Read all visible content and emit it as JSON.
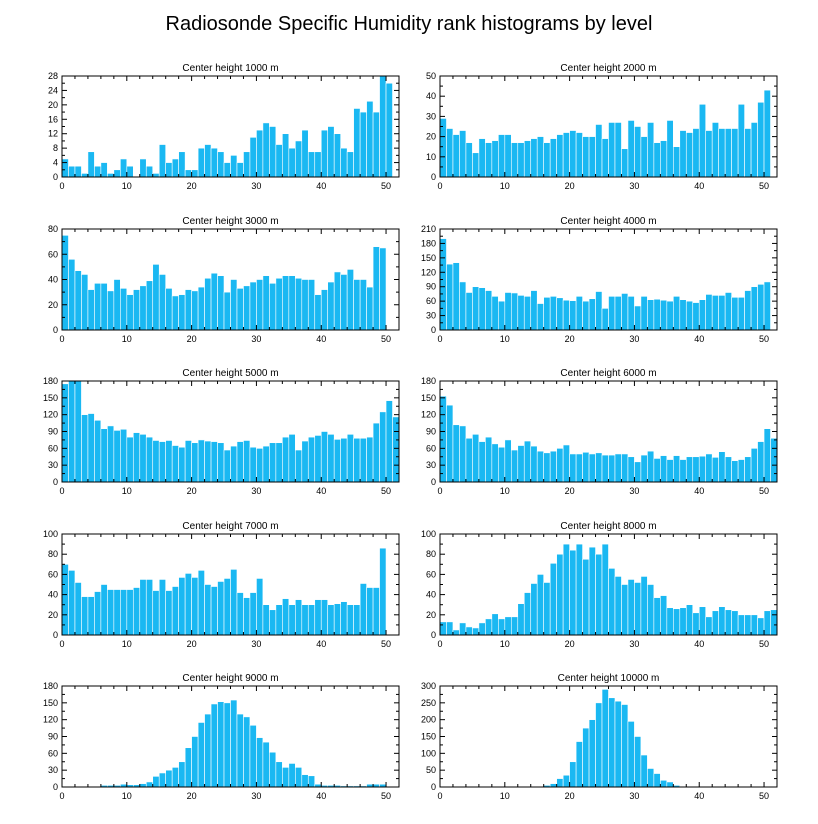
{
  "figure_title": "Radiosonde Specific Humidity rank histograms by level",
  "chart_data": [
    {
      "type": "bar",
      "title": "Center height 1000 m",
      "xlim": [
        0,
        52
      ],
      "ylim": [
        0,
        28
      ],
      "xticks": [
        0,
        10,
        20,
        30,
        40,
        50
      ],
      "yticks": [
        0,
        4,
        8,
        12,
        16,
        20,
        24,
        28
      ],
      "values": [
        5,
        3,
        3,
        1,
        7,
        3,
        4,
        1,
        2,
        5,
        3,
        0,
        5,
        3,
        1,
        9,
        4,
        5,
        7,
        2,
        2,
        8,
        9,
        8,
        7,
        4,
        6,
        4,
        7,
        11,
        13,
        15,
        14,
        9,
        12,
        8,
        10,
        13,
        7,
        7,
        13,
        14,
        12,
        8,
        7,
        19,
        18,
        21,
        18,
        28,
        26,
        0
      ]
    },
    {
      "type": "bar",
      "title": "Center height 2000 m",
      "xlim": [
        0,
        52
      ],
      "ylim": [
        0,
        50
      ],
      "xticks": [
        0,
        10,
        20,
        30,
        40,
        50
      ],
      "yticks": [
        0,
        10,
        20,
        30,
        40,
        50
      ],
      "values": [
        29,
        24,
        21,
        23,
        17,
        12,
        19,
        17,
        18,
        21,
        21,
        17,
        17,
        18,
        19,
        20,
        17,
        19,
        21,
        22,
        23,
        22,
        20,
        20,
        26,
        19,
        27,
        27,
        14,
        28,
        25,
        20,
        27,
        17,
        18,
        28,
        15,
        23,
        22,
        24,
        36,
        23,
        27,
        24,
        24,
        24,
        36,
        24,
        27,
        37,
        43,
        0
      ]
    },
    {
      "type": "bar",
      "title": "Center height 3000 m",
      "xlim": [
        0,
        52
      ],
      "ylim": [
        0,
        80
      ],
      "xticks": [
        0,
        10,
        20,
        30,
        40,
        50
      ],
      "yticks": [
        0,
        20,
        40,
        60,
        80
      ],
      "values": [
        75,
        56,
        47,
        44,
        32,
        37,
        37,
        31,
        40,
        33,
        28,
        32,
        35,
        39,
        52,
        44,
        33,
        27,
        28,
        32,
        31,
        34,
        41,
        45,
        43,
        30,
        40,
        33,
        35,
        38,
        40,
        43,
        37,
        41,
        43,
        43,
        41,
        40,
        40,
        28,
        32,
        38,
        46,
        44,
        48,
        40,
        40,
        34,
        66,
        65,
        0,
        0
      ]
    },
    {
      "type": "bar",
      "title": "Center height 4000 m",
      "xlim": [
        0,
        52
      ],
      "ylim": [
        0,
        210
      ],
      "xticks": [
        0,
        10,
        20,
        30,
        40,
        50
      ],
      "yticks": [
        0,
        30,
        60,
        90,
        120,
        150,
        180,
        210
      ],
      "values": [
        190,
        137,
        140,
        100,
        78,
        90,
        88,
        82,
        70,
        60,
        78,
        77,
        72,
        70,
        82,
        55,
        68,
        70,
        67,
        62,
        61,
        70,
        60,
        65,
        80,
        45,
        70,
        70,
        76,
        70,
        50,
        70,
        63,
        64,
        62,
        60,
        70,
        63,
        60,
        57,
        63,
        74,
        72,
        72,
        78,
        68,
        68,
        82,
        90,
        95,
        100,
        0
      ]
    },
    {
      "type": "bar",
      "title": "Center height 5000 m",
      "xlim": [
        0,
        52
      ],
      "ylim": [
        0,
        180
      ],
      "xticks": [
        0,
        10,
        20,
        30,
        40,
        50
      ],
      "yticks": [
        0,
        30,
        60,
        90,
        120,
        150,
        180
      ],
      "values": [
        175,
        180,
        180,
        120,
        122,
        110,
        95,
        100,
        92,
        94,
        80,
        88,
        85,
        80,
        74,
        72,
        74,
        65,
        62,
        74,
        70,
        75,
        73,
        72,
        70,
        57,
        64,
        72,
        74,
        62,
        60,
        64,
        70,
        70,
        80,
        85,
        57,
        73,
        80,
        83,
        90,
        85,
        76,
        78,
        85,
        78,
        78,
        80,
        105,
        125,
        145,
        116
      ]
    },
    {
      "type": "bar",
      "title": "Center height 6000 m",
      "xlim": [
        0,
        52
      ],
      "ylim": [
        0,
        180
      ],
      "xticks": [
        0,
        10,
        20,
        30,
        40,
        50
      ],
      "yticks": [
        0,
        30,
        60,
        90,
        120,
        150,
        180
      ],
      "values": [
        153,
        137,
        102,
        100,
        78,
        85,
        72,
        80,
        68,
        62,
        75,
        57,
        65,
        73,
        64,
        55,
        52,
        55,
        60,
        66,
        50,
        50,
        53,
        50,
        52,
        48,
        48,
        50,
        50,
        45,
        36,
        48,
        55,
        42,
        47,
        40,
        47,
        40,
        45,
        45,
        46,
        50,
        44,
        54,
        45,
        38,
        40,
        45,
        60,
        72,
        95,
        78
      ]
    },
    {
      "type": "bar",
      "title": "Center height 7000 m",
      "xlim": [
        0,
        52
      ],
      "ylim": [
        0,
        100
      ],
      "xticks": [
        0,
        10,
        20,
        30,
        40,
        50
      ],
      "yticks": [
        0,
        20,
        40,
        60,
        80,
        100
      ],
      "values": [
        70,
        64,
        52,
        38,
        38,
        43,
        50,
        45,
        45,
        45,
        45,
        47,
        55,
        55,
        44,
        55,
        44,
        48,
        57,
        61,
        57,
        64,
        50,
        48,
        53,
        56,
        65,
        42,
        37,
        42,
        56,
        30,
        25,
        30,
        36,
        30,
        35,
        30,
        30,
        35,
        35,
        30,
        31,
        33,
        30,
        30,
        51,
        47,
        47,
        86,
        0,
        0
      ]
    },
    {
      "type": "bar",
      "title": "Center height 8000 m",
      "xlim": [
        0,
        52
      ],
      "ylim": [
        0,
        100
      ],
      "xticks": [
        0,
        10,
        20,
        30,
        40,
        50
      ],
      "yticks": [
        0,
        20,
        40,
        60,
        80,
        100
      ],
      "values": [
        13,
        13,
        5,
        12,
        8,
        7,
        12,
        16,
        21,
        16,
        18,
        18,
        31,
        42,
        51,
        60,
        52,
        71,
        80,
        90,
        84,
        90,
        75,
        87,
        80,
        90,
        66,
        58,
        50,
        55,
        52,
        58,
        50,
        37,
        39,
        27,
        26,
        27,
        30,
        22,
        28,
        18,
        24,
        28,
        25,
        24,
        20,
        20,
        20,
        17,
        24,
        25
      ]
    },
    {
      "type": "bar",
      "title": "Center height 9000 m",
      "xlim": [
        0,
        52
      ],
      "ylim": [
        0,
        180
      ],
      "xticks": [
        0,
        10,
        20,
        30,
        40,
        50
      ],
      "yticks": [
        0,
        30,
        60,
        90,
        120,
        150,
        180
      ],
      "values": [
        0,
        0,
        0,
        0,
        0,
        0,
        3,
        3,
        3,
        5,
        4,
        4,
        6,
        9,
        19,
        25,
        30,
        35,
        45,
        70,
        90,
        115,
        130,
        148,
        152,
        150,
        155,
        130,
        125,
        110,
        88,
        80,
        62,
        45,
        35,
        42,
        35,
        22,
        20,
        5,
        3,
        3,
        3,
        2,
        2,
        2,
        2,
        5,
        5,
        5,
        0,
        0
      ]
    },
    {
      "type": "bar",
      "title": "Center height 10000 m",
      "xlim": [
        0,
        52
      ],
      "ylim": [
        0,
        300
      ],
      "xticks": [
        0,
        10,
        20,
        30,
        40,
        50
      ],
      "yticks": [
        0,
        50,
        100,
        150,
        200,
        250,
        300
      ],
      "values": [
        0,
        0,
        0,
        0,
        0,
        0,
        0,
        0,
        0,
        0,
        0,
        0,
        0,
        0,
        0,
        0,
        5,
        10,
        25,
        35,
        75,
        135,
        175,
        200,
        250,
        290,
        265,
        255,
        245,
        195,
        150,
        95,
        55,
        40,
        20,
        15,
        5,
        2,
        1,
        0,
        0,
        0,
        0,
        0,
        0,
        0,
        0,
        0,
        0,
        0,
        0,
        0
      ]
    }
  ]
}
